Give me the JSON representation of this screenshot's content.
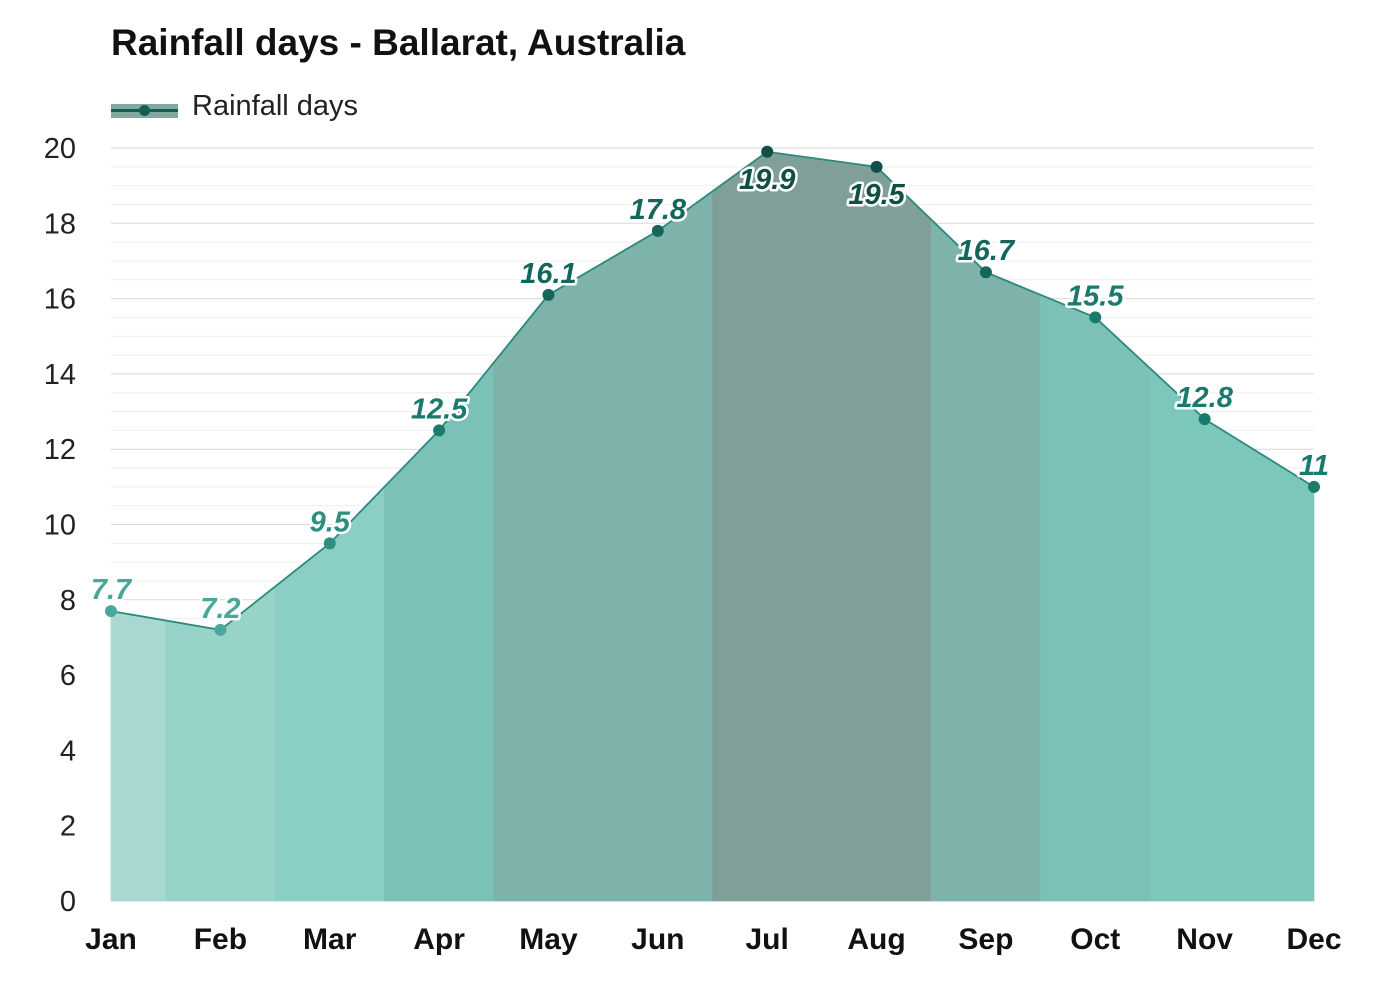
{
  "title": "Rainfall days - Ballarat, Australia",
  "legend": {
    "label": "Rainfall days",
    "position": "top-left",
    "color": "#175e52"
  },
  "chart_data": {
    "type": "area",
    "title": "Rainfall days - Ballarat, Australia",
    "xlabel": "",
    "ylabel": "",
    "categories": [
      "Jan",
      "Feb",
      "Mar",
      "Apr",
      "May",
      "Jun",
      "Jul",
      "Aug",
      "Sep",
      "Oct",
      "Nov",
      "Dec"
    ],
    "series": [
      {
        "name": "Rainfall days",
        "values": [
          7.7,
          7.2,
          9.5,
          12.5,
          16.1,
          17.8,
          19.9,
          19.5,
          16.7,
          15.5,
          12.8,
          11
        ]
      }
    ],
    "data_labels": [
      "7.7",
      "7.2",
      "9.5",
      "12.5",
      "16.1",
      "17.8",
      "19.9",
      "19.5",
      "16.7",
      "15.5",
      "12.8",
      "11"
    ],
    "ylim": [
      0,
      20
    ],
    "yticks": [
      0,
      2,
      4,
      6,
      8,
      10,
      12,
      14,
      16,
      18,
      20
    ],
    "grid": true,
    "band_colors": [
      "#a8d8d1",
      "#98d3ca",
      "#8bcec5",
      "#7cc1b7",
      "#7eb3ab",
      "#7eb3ab",
      "#809f98",
      "#809f98",
      "#7eb3ab",
      "#7cc1b7",
      "#7cc7bc",
      "#7cc7bc"
    ],
    "point_colors": [
      "#4aa89a",
      "#4aa89a",
      "#2d8f80",
      "#1a7a6c",
      "#14665a",
      "#14665a",
      "#0f4f45",
      "#0f4f45",
      "#14665a",
      "#1a7a6c",
      "#1a7a6c",
      "#1a7a6c"
    ],
    "line_color": "#2a8a7c"
  }
}
